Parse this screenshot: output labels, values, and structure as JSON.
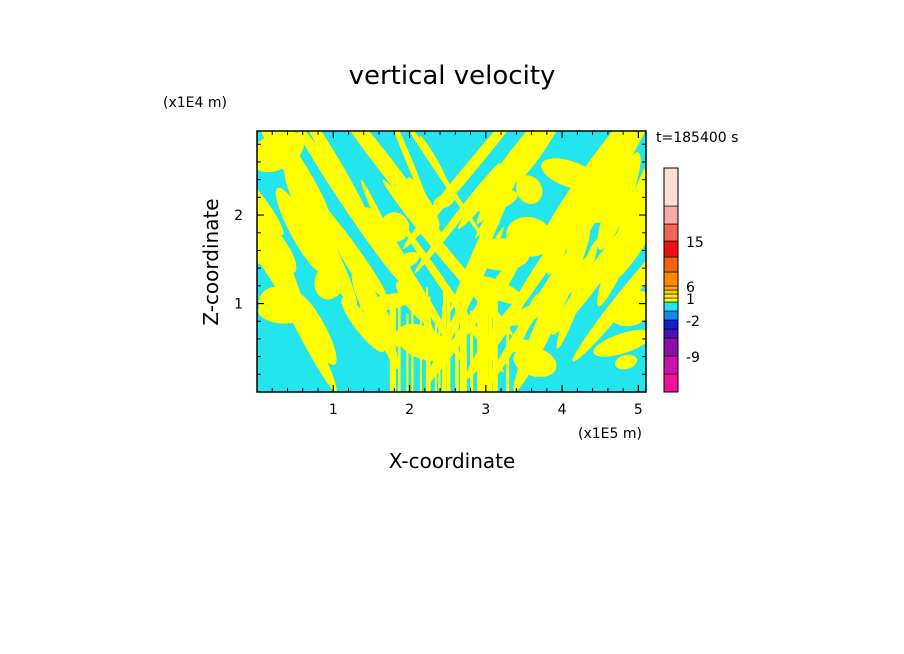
{
  "chart_data": {
    "type": "contour",
    "title": "vertical velocity",
    "xlabel": "X-coordinate",
    "ylabel": "Z-coordinate",
    "x_unit": "(x1E5 m)",
    "y_unit": "(x1E4 m)",
    "time_label": "t=185400 s",
    "xlim": [
      0,
      5.1
    ],
    "ylim": [
      0,
      2.95
    ],
    "x_ticks": [
      1,
      2,
      3,
      4,
      5
    ],
    "y_ticks": [
      1,
      2
    ],
    "field_colors": {
      "positive": "#ffff00",
      "negative": "#22e5ee"
    },
    "colorbar": {
      "levels": [
        {
          "range": "-12..-9",
          "color": "#ee1199"
        },
        {
          "range": "-9..-6",
          "color": "#cc11aa"
        },
        {
          "range": "-6..-4",
          "color": "#8811aa"
        },
        {
          "range": "-4..-3",
          "color": "#4411bb"
        },
        {
          "range": "-3..-2",
          "color": "#1122cc"
        },
        {
          "range": "-2..-1",
          "color": "#1188ee"
        },
        {
          "range": "-1..0",
          "color": "#22e5ee"
        },
        {
          "range": "0..0.5",
          "color": "#ffff00"
        },
        {
          "range": "0.5..1",
          "color": "#ffee00"
        },
        {
          "range": "1..2",
          "color": "#ffcc00"
        },
        {
          "range": "2..4",
          "color": "#ffaa00"
        },
        {
          "range": "4..6",
          "color": "#ff8800"
        },
        {
          "range": "6..9",
          "color": "#ee6611"
        },
        {
          "range": "9..12",
          "color": "#ee1111"
        },
        {
          "range": "12..15",
          "color": "#ee6655"
        },
        {
          "range": "15..18",
          "color": "#f5aaaa"
        },
        {
          "range": "18..24",
          "color": "#fcdcd6"
        }
      ],
      "tick_labels": [
        "15",
        "6",
        "1",
        "-2",
        "-9"
      ]
    }
  }
}
